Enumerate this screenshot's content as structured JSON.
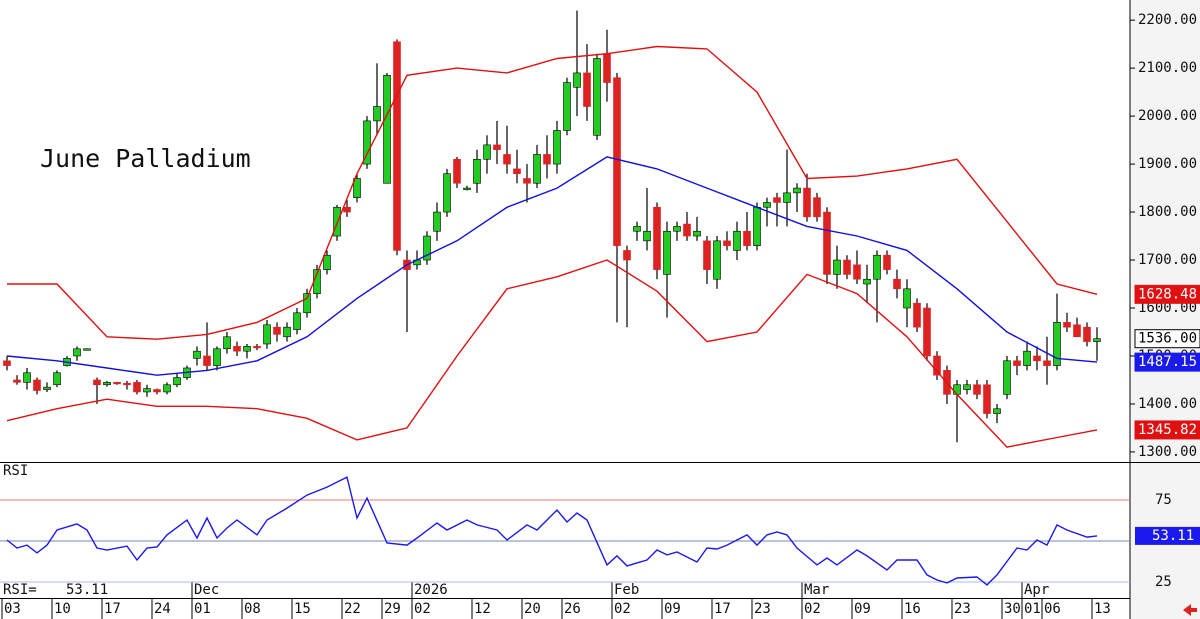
{
  "chart_data": {
    "type": "candlestick",
    "title": "June Palladium",
    "candles": [
      [
        1490,
        1500,
        1470,
        1480
      ],
      [
        1450,
        1460,
        1440,
        1445
      ],
      [
        1445,
        1475,
        1430,
        1465
      ],
      [
        1450,
        1455,
        1420,
        1428
      ],
      [
        1430,
        1445,
        1425,
        1435
      ],
      [
        1440,
        1470,
        1435,
        1465
      ],
      [
        1480,
        1500,
        1478,
        1495
      ],
      [
        1500,
        1520,
        1490,
        1515
      ],
      [
        1515,
        1516,
        1514,
        1515
      ],
      [
        1450,
        1455,
        1400,
        1440
      ],
      [
        1440,
        1448,
        1436,
        1445
      ],
      [
        1445,
        1446,
        1440,
        1443
      ],
      [
        1443,
        1448,
        1430,
        1440
      ],
      [
        1445,
        1450,
        1420,
        1425
      ],
      [
        1425,
        1440,
        1415,
        1432
      ],
      [
        1430,
        1432,
        1420,
        1425
      ],
      [
        1425,
        1445,
        1420,
        1440
      ],
      [
        1440,
        1465,
        1435,
        1455
      ],
      [
        1455,
        1480,
        1450,
        1475
      ],
      [
        1495,
        1520,
        1480,
        1510
      ],
      [
        1500,
        1570,
        1470,
        1480
      ],
      [
        1480,
        1520,
        1470,
        1515
      ],
      [
        1515,
        1550,
        1505,
        1540
      ],
      [
        1520,
        1530,
        1500,
        1510
      ],
      [
        1510,
        1525,
        1495,
        1520
      ],
      [
        1520,
        1525,
        1512,
        1518
      ],
      [
        1525,
        1575,
        1515,
        1565
      ],
      [
        1560,
        1570,
        1530,
        1545
      ],
      [
        1540,
        1570,
        1530,
        1560
      ],
      [
        1555,
        1600,
        1545,
        1590
      ],
      [
        1590,
        1640,
        1580,
        1630
      ],
      [
        1630,
        1690,
        1620,
        1680
      ],
      [
        1680,
        1720,
        1670,
        1710
      ],
      [
        1750,
        1815,
        1740,
        1810
      ],
      [
        1810,
        1825,
        1790,
        1800
      ],
      [
        1830,
        1880,
        1820,
        1870
      ],
      [
        1900,
        2000,
        1890,
        1990
      ],
      [
        1990,
        2110,
        1960,
        2020
      ],
      [
        1860,
        2090,
        1860,
        2085
      ],
      [
        2155,
        2160,
        1710,
        1720
      ],
      [
        1700,
        1720,
        1550,
        1680
      ],
      [
        1690,
        1720,
        1680,
        1700
      ],
      [
        1700,
        1760,
        1690,
        1750
      ],
      [
        1760,
        1820,
        1740,
        1800
      ],
      [
        1800,
        1890,
        1790,
        1880
      ],
      [
        1910,
        1915,
        1850,
        1860
      ],
      [
        1850,
        1855,
        1845,
        1850
      ],
      [
        1860,
        1930,
        1840,
        1910
      ],
      [
        1910,
        1960,
        1880,
        1940
      ],
      [
        1940,
        1990,
        1900,
        1930
      ],
      [
        1920,
        1980,
        1880,
        1900
      ],
      [
        1890,
        1930,
        1860,
        1880
      ],
      [
        1870,
        1900,
        1820,
        1860
      ],
      [
        1860,
        1940,
        1850,
        1920
      ],
      [
        1920,
        1960,
        1870,
        1900
      ],
      [
        1900,
        1990,
        1880,
        1970
      ],
      [
        1970,
        2080,
        1960,
        2070
      ],
      [
        2060,
        2220,
        2000,
        2090
      ],
      [
        2090,
        2150,
        1990,
        2020
      ],
      [
        1960,
        2130,
        1950,
        2120
      ],
      [
        2130,
        2180,
        2030,
        2070
      ],
      [
        2080,
        2090,
        1570,
        1730
      ],
      [
        1720,
        1730,
        1560,
        1700
      ],
      [
        1760,
        1780,
        1740,
        1770
      ],
      [
        1740,
        1850,
        1720,
        1760
      ],
      [
        1810,
        1820,
        1660,
        1680
      ],
      [
        1670,
        1780,
        1580,
        1760
      ],
      [
        1760,
        1780,
        1740,
        1770
      ],
      [
        1775,
        1800,
        1740,
        1750
      ],
      [
        1750,
        1790,
        1740,
        1760
      ],
      [
        1740,
        1750,
        1650,
        1680
      ],
      [
        1660,
        1750,
        1640,
        1740
      ],
      [
        1740,
        1760,
        1720,
        1730
      ],
      [
        1720,
        1780,
        1700,
        1760
      ],
      [
        1760,
        1800,
        1720,
        1730
      ],
      [
        1730,
        1820,
        1720,
        1810
      ],
      [
        1810,
        1830,
        1770,
        1820
      ],
      [
        1830,
        1840,
        1770,
        1820
      ],
      [
        1820,
        1930,
        1770,
        1840
      ],
      [
        1840,
        1860,
        1800,
        1850
      ],
      [
        1850,
        1880,
        1780,
        1790
      ],
      [
        1830,
        1840,
        1780,
        1790
      ],
      [
        1800,
        1810,
        1650,
        1670
      ],
      [
        1670,
        1730,
        1640,
        1700
      ],
      [
        1700,
        1710,
        1660,
        1670
      ],
      [
        1690,
        1720,
        1650,
        1660
      ],
      [
        1650,
        1690,
        1610,
        1660
      ],
      [
        1660,
        1720,
        1570,
        1710
      ],
      [
        1710,
        1720,
        1670,
        1680
      ],
      [
        1660,
        1680,
        1620,
        1640
      ],
      [
        1600,
        1660,
        1560,
        1640
      ],
      [
        1610,
        1620,
        1550,
        1560
      ],
      [
        1600,
        1610,
        1490,
        1500
      ],
      [
        1500,
        1510,
        1450,
        1460
      ],
      [
        1470,
        1480,
        1400,
        1420
      ],
      [
        1420,
        1450,
        1320,
        1440
      ],
      [
        1430,
        1450,
        1420,
        1440
      ],
      [
        1440,
        1450,
        1410,
        1420
      ],
      [
        1440,
        1450,
        1370,
        1380
      ],
      [
        1380,
        1400,
        1360,
        1390
      ],
      [
        1420,
        1500,
        1410,
        1490
      ],
      [
        1490,
        1500,
        1460,
        1480
      ],
      [
        1480,
        1530,
        1470,
        1510
      ],
      [
        1500,
        1520,
        1470,
        1490
      ],
      [
        1490,
        1540,
        1440,
        1480
      ],
      [
        1480,
        1630,
        1470,
        1570
      ],
      [
        1570,
        1590,
        1550,
        1560
      ],
      [
        1565,
        1580,
        1540,
        1540
      ],
      [
        1560,
        1570,
        1520,
        1530
      ],
      [
        1530,
        1560,
        1490,
        1536
      ]
    ],
    "up_color": "#22cc22",
    "down_color": "#dd2222",
    "close_label": "1536.00",
    "xlim": [
      -0.7,
      112.3
    ],
    "ylim": [
      1279,
      2242
    ],
    "yticks": [
      {
        "value": 1300,
        "label": "1300.00"
      },
      {
        "value": 1400,
        "label": "1400.00"
      },
      {
        "value": 1500,
        "label": "1500.00"
      },
      {
        "value": 1600,
        "label": "1600.00"
      },
      {
        "value": 1700,
        "label": "1700.00"
      },
      {
        "value": 1800,
        "label": "1800.00"
      },
      {
        "value": 1900,
        "label": "1900.00"
      },
      {
        "value": 2000,
        "label": "2000.00"
      },
      {
        "value": 2100,
        "label": "2100.00"
      },
      {
        "value": 2200,
        "label": "2200.00"
      }
    ],
    "xticks": [
      {
        "value": 0,
        "label": "03"
      },
      {
        "value": 5,
        "label": "10"
      },
      {
        "value": 10,
        "label": "17"
      },
      {
        "value": 15,
        "label": "24"
      },
      {
        "value": 19,
        "label": "01"
      },
      {
        "value": 24,
        "label": "08"
      },
      {
        "value": 29,
        "label": "15"
      },
      {
        "value": 34,
        "label": "22"
      },
      {
        "value": 38,
        "label": "29"
      },
      {
        "value": 41,
        "label": "02"
      },
      {
        "value": 47,
        "label": "12"
      },
      {
        "value": 52,
        "label": "20"
      },
      {
        "value": 56,
        "label": "26"
      },
      {
        "value": 61,
        "label": "02"
      },
      {
        "value": 66,
        "label": "09"
      },
      {
        "value": 71,
        "label": "17"
      },
      {
        "value": 75,
        "label": "23"
      },
      {
        "value": 80,
        "label": "02"
      },
      {
        "value": 85,
        "label": "09"
      },
      {
        "value": 90,
        "label": "16"
      },
      {
        "value": 95,
        "label": "23"
      },
      {
        "value": 100,
        "label": "30"
      },
      {
        "value": 102,
        "label": "01"
      },
      {
        "value": 104,
        "label": "06"
      },
      {
        "value": 109,
        "label": "13"
      }
    ],
    "month_ticks": [
      {
        "value": 19,
        "label": "Dec"
      },
      {
        "value": 41,
        "label": "2026"
      },
      {
        "value": 61,
        "label": "Feb"
      },
      {
        "value": 80,
        "label": "Mar"
      },
      {
        "value": 102,
        "label": "Apr"
      }
    ],
    "bands": [
      {
        "color": "#e01010",
        "label_color": "#e01010",
        "x": [
          0,
          5,
          10,
          15,
          20,
          25,
          30,
          35,
          40,
          45,
          50,
          55,
          60,
          65,
          70,
          75,
          80,
          85,
          90,
          95,
          100,
          105,
          109
        ],
        "values": [
          1650,
          1650,
          1540,
          1535,
          1545,
          1570,
          1620,
          1880,
          2085,
          2100,
          2090,
          2120,
          2130,
          2145,
          2140,
          2050,
          1870,
          1875,
          1890,
          1910,
          1780,
          1650,
          1628.48
        ]
      },
      {
        "color": "#1010dd",
        "label_color": "#1a1aee",
        "x": [
          0,
          5,
          10,
          15,
          20,
          25,
          30,
          35,
          40,
          45,
          50,
          55,
          60,
          65,
          70,
          75,
          80,
          85,
          90,
          95,
          100,
          105,
          109
        ],
        "values": [
          1500,
          1490,
          1475,
          1460,
          1470,
          1490,
          1540,
          1620,
          1690,
          1740,
          1810,
          1850,
          1915,
          1890,
          1850,
          1810,
          1770,
          1750,
          1720,
          1640,
          1550,
          1495,
          1487.15
        ]
      },
      {
        "color": "#e01010",
        "label_color": "#e01010",
        "x": [
          0,
          5,
          10,
          15,
          20,
          25,
          30,
          35,
          40,
          45,
          50,
          55,
          60,
          65,
          70,
          75,
          80,
          85,
          90,
          95,
          100,
          105,
          109
        ],
        "values": [
          1365,
          1390,
          1410,
          1395,
          1395,
          1390,
          1370,
          1325,
          1350,
          1500,
          1640,
          1665,
          1700,
          1635,
          1530,
          1550,
          1670,
          1630,
          1540,
          1420,
          1310,
          1330,
          1345.82
        ]
      }
    ],
    "rsi": {
      "label": "RSI",
      "readout_label": "RSI=",
      "color": "#1a1aee",
      "ylim": [
        15.2,
        97.6
      ],
      "yticks": [
        25,
        75
      ],
      "midline": 50,
      "x": [
        0,
        1,
        2,
        3,
        4,
        5,
        7,
        8,
        9,
        10,
        12,
        13,
        14,
        15,
        16,
        18,
        19,
        20,
        21,
        22,
        23,
        25,
        26,
        28,
        30,
        32,
        34,
        35,
        36,
        38,
        40,
        41,
        43,
        44,
        46,
        47,
        49,
        50,
        52,
        53,
        55,
        56,
        57,
        58,
        60,
        61,
        62,
        64,
        65,
        66,
        67,
        69,
        70,
        71,
        72,
        74,
        75,
        76,
        77,
        78,
        79,
        81,
        82,
        83,
        85,
        86,
        88,
        89,
        91,
        92,
        93,
        94,
        95,
        97,
        98,
        99,
        101,
        102,
        103,
        104,
        105,
        106,
        108,
        109
      ],
      "values": [
        50.6,
        45.7,
        47.5,
        42.7,
        47.5,
        56.7,
        60.4,
        56.7,
        45.7,
        44.5,
        46.9,
        38.4,
        45.7,
        46.3,
        53.7,
        62.8,
        51.8,
        64.0,
        51.8,
        57.9,
        62.8,
        53.7,
        62.8,
        70.1,
        78.0,
        82.9,
        89.0,
        64.0,
        76.2,
        48.8,
        47.5,
        51.8,
        61.0,
        56.7,
        62.8,
        59.8,
        56.7,
        50.6,
        59.8,
        56.7,
        68.9,
        61.6,
        67.1,
        62.8,
        35.4,
        40.9,
        34.8,
        38.4,
        44.5,
        41.5,
        43.3,
        37.2,
        45.7,
        45.1,
        47.5,
        53.7,
        47.5,
        53.7,
        55.5,
        53.7,
        45.7,
        35.4,
        39.6,
        35.4,
        44.5,
        40.9,
        32.3,
        38.4,
        38.4,
        29.3,
        26.2,
        24.4,
        27.4,
        28.0,
        23.2,
        29.3,
        45.7,
        44.5,
        50.6,
        47.5,
        59.8,
        56.7,
        52.4,
        53.11
      ]
    }
  }
}
